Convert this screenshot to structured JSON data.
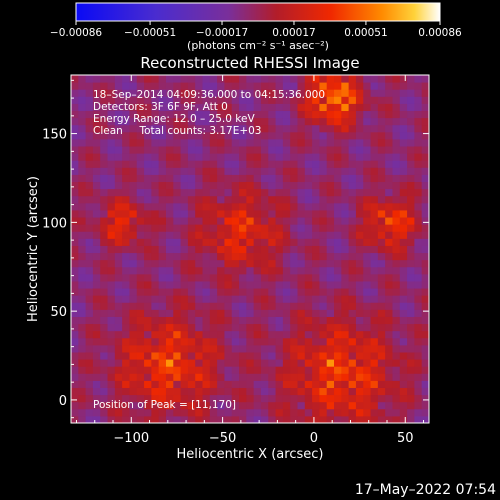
{
  "chart_data": {
    "type": "heatmap",
    "title": "Reconstructed RHESSI Image",
    "xlabel": "Heliocentric X (arcsec)",
    "ylabel": "Heliocentric Y (arcsec)",
    "xlim": [
      -133,
      63
    ],
    "ylim": [
      -13,
      183
    ],
    "xticks": [
      -100,
      -50,
      0,
      50
    ],
    "xtick_labels": [
      "−100",
      "−50",
      "0",
      "50"
    ],
    "yticks": [
      0,
      50,
      100,
      150
    ],
    "ytick_labels": [
      "0",
      "50",
      "100",
      "150"
    ],
    "colorbar": {
      "ticks": [
        -0.00086,
        -0.00051,
        -0.00017,
        0.00017,
        0.00051,
        0.00086
      ],
      "tick_labels": [
        "−0.00086",
        "−0.00051",
        "−0.00017",
        "0.00017",
        "0.00051",
        "0.00086"
      ],
      "units_label": "(photons cm⁻² s⁻¹ asec⁻²)",
      "range": [
        -0.00086,
        0.00086
      ]
    },
    "annotations": [
      "18–Sep–2014 04:09:36.000 to 04:15:36.000",
      "Detectors: 3F 6F 9F, Att 0",
      "Energy Range: 12.0 – 25.0 keV",
      "Clean     Total counts: 3.17E+03"
    ],
    "peak_label": "Position of Peak = [11,170]",
    "peak": [
      11,
      170
    ],
    "sources": [
      {
        "x": -80,
        "y": 20,
        "sigma": 18,
        "amp": 0.0006
      },
      {
        "x": -105,
        "y": 100,
        "sigma": 9,
        "amp": 0.0005
      },
      {
        "x": -40,
        "y": 95,
        "sigma": 15,
        "amp": 0.0005
      },
      {
        "x": 42,
        "y": 100,
        "sigma": 10,
        "amp": 0.0006
      },
      {
        "x": 11,
        "y": 170,
        "sigma": 10,
        "amp": 0.00086
      },
      {
        "x": 15,
        "y": 15,
        "sigma": 20,
        "amp": 0.0006
      }
    ]
  },
  "footer_timestamp": "17–May–2022 07:54",
  "colors": {
    "background": "#000000",
    "low_color": "#0a0af5",
    "mid_color": "#7a2fa0",
    "high_color": "#ff2a00",
    "top_color": "#ffffff"
  }
}
